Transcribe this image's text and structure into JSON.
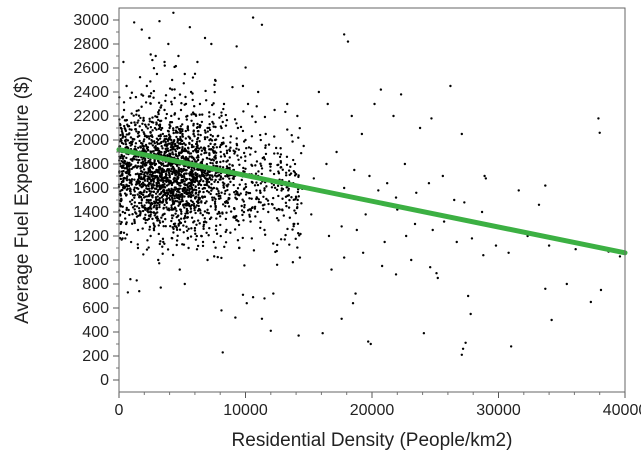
{
  "chart_data": {
    "type": "scatter",
    "title": "",
    "xlabel": "Residential Density (People/km2)",
    "ylabel": "Average Fuel Expenditure ($)",
    "xlim": [
      0,
      40000
    ],
    "ylim": [
      -100,
      3100
    ],
    "x_ticks": [
      0,
      10000,
      20000,
      30000,
      40000
    ],
    "x_tick_labels": [
      "0",
      "10000",
      "20000",
      "30000",
      "40000"
    ],
    "y_ticks": [
      0,
      200,
      400,
      600,
      800,
      1000,
      1200,
      1400,
      1600,
      1800,
      2000,
      2200,
      2400,
      2600,
      2800,
      3000
    ],
    "y_tick_labels": [
      "0",
      "200",
      "400",
      "600",
      "800",
      "1000",
      "1200",
      "1400",
      "1600",
      "1800",
      "2000",
      "2200",
      "2400",
      "2600",
      "2800",
      "3000"
    ],
    "grid": false,
    "point_color": "#000000",
    "trend_color": "#3cb043",
    "trend_line": {
      "x": [
        0,
        40000
      ],
      "y": [
        1920,
        1060
      ]
    },
    "points_note": "approximately 2500 points, densest at 1500-6000 people/km2 and $1500-$2000",
    "points": [
      [
        1200,
        2980
      ],
      [
        1800,
        2920
      ],
      [
        2400,
        2850
      ],
      [
        3200,
        2990
      ],
      [
        4300,
        3060
      ],
      [
        5600,
        2940
      ],
      [
        6800,
        2850
      ],
      [
        7300,
        2800
      ],
      [
        9300,
        2780
      ],
      [
        10600,
        3020
      ],
      [
        11300,
        2960
      ],
      [
        17800,
        2880
      ],
      [
        18100,
        2820
      ],
      [
        4200,
        2420
      ],
      [
        4900,
        2250
      ],
      [
        7600,
        2500
      ],
      [
        8300,
        2300
      ],
      [
        9800,
        2450
      ],
      [
        10200,
        2300
      ],
      [
        11000,
        2400
      ],
      [
        12300,
        2250
      ],
      [
        13300,
        2300
      ],
      [
        14100,
        2200
      ],
      [
        15800,
        2400
      ],
      [
        16500,
        2300
      ],
      [
        18400,
        2200
      ],
      [
        19200,
        2050
      ],
      [
        20200,
        2300
      ],
      [
        20700,
        2420
      ],
      [
        21700,
        2200
      ],
      [
        22300,
        2380
      ],
      [
        23800,
        2100
      ],
      [
        24700,
        2180
      ],
      [
        26200,
        2450
      ],
      [
        27100,
        2050
      ],
      [
        37900,
        2180
      ],
      [
        38000,
        2060
      ],
      [
        12800,
        1880
      ],
      [
        13600,
        1720
      ],
      [
        14600,
        1950
      ],
      [
        15400,
        1680
      ],
      [
        16400,
        1800
      ],
      [
        17200,
        1900
      ],
      [
        17800,
        1600
      ],
      [
        18600,
        1750
      ],
      [
        19800,
        1700
      ],
      [
        20500,
        1580
      ],
      [
        21200,
        1640
      ],
      [
        21900,
        1520
      ],
      [
        22600,
        1800
      ],
      [
        23500,
        1560
      ],
      [
        24500,
        1640
      ],
      [
        25600,
        1700
      ],
      [
        26500,
        1500
      ],
      [
        27300,
        1480
      ],
      [
        28900,
        1700
      ],
      [
        29000,
        1680
      ],
      [
        31600,
        1580
      ],
      [
        33700,
        1620
      ],
      [
        33200,
        1460
      ],
      [
        12700,
        1420
      ],
      [
        13800,
        1300
      ],
      [
        15200,
        1380
      ],
      [
        16600,
        1200
      ],
      [
        17600,
        1280
      ],
      [
        18800,
        1250
      ],
      [
        19500,
        1380
      ],
      [
        21000,
        1150
      ],
      [
        22000,
        1420
      ],
      [
        22700,
        1200
      ],
      [
        23400,
        1300
      ],
      [
        24800,
        1250
      ],
      [
        25700,
        1320
      ],
      [
        26700,
        1150
      ],
      [
        27900,
        1180
      ],
      [
        28700,
        1400
      ],
      [
        29800,
        1120
      ],
      [
        31000,
        1250
      ],
      [
        32300,
        1200
      ],
      [
        34000,
        1120
      ],
      [
        36100,
        1090
      ],
      [
        38700,
        1070
      ],
      [
        39600,
        1030
      ],
      [
        12500,
        960
      ],
      [
        14300,
        1020
      ],
      [
        16800,
        920
      ],
      [
        17800,
        1020
      ],
      [
        19300,
        1060
      ],
      [
        20800,
        950
      ],
      [
        21900,
        880
      ],
      [
        23100,
        1000
      ],
      [
        24600,
        940
      ],
      [
        25100,
        890
      ],
      [
        28800,
        1040
      ],
      [
        30800,
        1060
      ],
      [
        900,
        840
      ],
      [
        1400,
        830
      ],
      [
        700,
        730
      ],
      [
        1600,
        740
      ],
      [
        3300,
        770
      ],
      [
        5200,
        800
      ],
      [
        9800,
        710
      ],
      [
        10100,
        640
      ],
      [
        10600,
        690
      ],
      [
        11500,
        680
      ],
      [
        12200,
        720
      ],
      [
        8100,
        580
      ],
      [
        9200,
        520
      ],
      [
        11300,
        510
      ],
      [
        12000,
        410
      ],
      [
        14200,
        370
      ],
      [
        16100,
        390
      ],
      [
        17600,
        510
      ],
      [
        18500,
        640
      ],
      [
        18700,
        720
      ],
      [
        19700,
        320
      ],
      [
        19900,
        300
      ],
      [
        24100,
        390
      ],
      [
        25200,
        850
      ],
      [
        27600,
        700
      ],
      [
        27800,
        550
      ],
      [
        27200,
        260
      ],
      [
        27400,
        310
      ],
      [
        27100,
        210
      ],
      [
        31000,
        280
      ],
      [
        33700,
        760
      ],
      [
        34200,
        500
      ],
      [
        35400,
        800
      ],
      [
        37300,
        650
      ],
      [
        38100,
        750
      ],
      [
        8200,
        230
      ],
      [
        4800,
        920
      ],
      [
        7000,
        1000
      ],
      [
        3100,
        1000
      ],
      [
        1500,
        1100
      ],
      [
        500,
        1180
      ],
      [
        300,
        1400
      ],
      [
        200,
        1500
      ],
      [
        100,
        1700
      ],
      [
        250,
        1900
      ],
      [
        150,
        2100
      ],
      [
        400,
        2250
      ],
      [
        600,
        2450
      ],
      [
        350,
        2650
      ],
      [
        900,
        2350
      ],
      [
        3000,
        1750
      ],
      [
        3300,
        1810
      ],
      [
        2700,
        1680
      ],
      [
        3800,
        1620
      ],
      [
        4100,
        1740
      ],
      [
        2500,
        1860
      ],
      [
        2000,
        1900
      ],
      [
        1700,
        1780
      ],
      [
        4500,
        1840
      ],
      [
        5000,
        1700
      ],
      [
        5500,
        1780
      ],
      [
        6000,
        1650
      ],
      [
        6500,
        1880
      ],
      [
        7000,
        1720
      ],
      [
        7500,
        1600
      ],
      [
        8000,
        1760
      ],
      [
        8500,
        1820
      ],
      [
        9000,
        1680
      ],
      [
        9500,
        1540
      ],
      [
        10000,
        1760
      ],
      [
        10500,
        1650
      ],
      [
        11000,
        1700
      ],
      [
        11500,
        1580
      ],
      [
        12000,
        1800
      ],
      [
        2200,
        1500
      ],
      [
        2800,
        1450
      ],
      [
        3500,
        1380
      ],
      [
        4200,
        1520
      ],
      [
        4800,
        1470
      ],
      [
        5200,
        1350
      ],
      [
        5800,
        1560
      ],
      [
        6300,
        1450
      ],
      [
        6800,
        1320
      ],
      [
        7400,
        1500
      ],
      [
        7900,
        1400
      ],
      [
        8600,
        1480
      ],
      [
        9200,
        1360
      ],
      [
        9700,
        1450
      ],
      [
        10400,
        1320
      ],
      [
        11200,
        1480
      ],
      [
        11800,
        1400
      ],
      [
        2000,
        2050
      ],
      [
        2600,
        2150
      ],
      [
        3100,
        2000
      ],
      [
        3600,
        2250
      ],
      [
        4000,
        2100
      ],
      [
        4400,
        2350
      ],
      [
        4900,
        2000
      ],
      [
        5400,
        2200
      ],
      [
        5900,
        2050
      ],
      [
        6400,
        2300
      ],
      [
        7000,
        2100
      ],
      [
        7600,
        2000
      ],
      [
        8200,
        2150
      ],
      [
        8800,
        1980
      ],
      [
        9400,
        2100
      ],
      [
        10000,
        2000
      ],
      [
        10800,
        2150
      ],
      [
        11600,
        2050
      ],
      [
        1500,
        1250
      ],
      [
        2500,
        1200
      ],
      [
        3500,
        1150
      ],
      [
        4500,
        1280
      ],
      [
        5500,
        1100
      ],
      [
        6500,
        1200
      ],
      [
        7500,
        1150
      ],
      [
        8500,
        1250
      ],
      [
        9500,
        1100
      ],
      [
        10500,
        1180
      ],
      [
        11500,
        1250
      ],
      [
        2200,
        2450
      ],
      [
        3000,
        2550
      ],
      [
        3600,
        2650
      ],
      [
        4200,
        2500
      ],
      [
        4700,
        2700
      ],
      [
        5200,
        2550
      ],
      [
        5700,
        2400
      ],
      [
        6200,
        2650
      ],
      [
        2900,
        2700
      ],
      [
        3900,
        2800
      ]
    ]
  }
}
